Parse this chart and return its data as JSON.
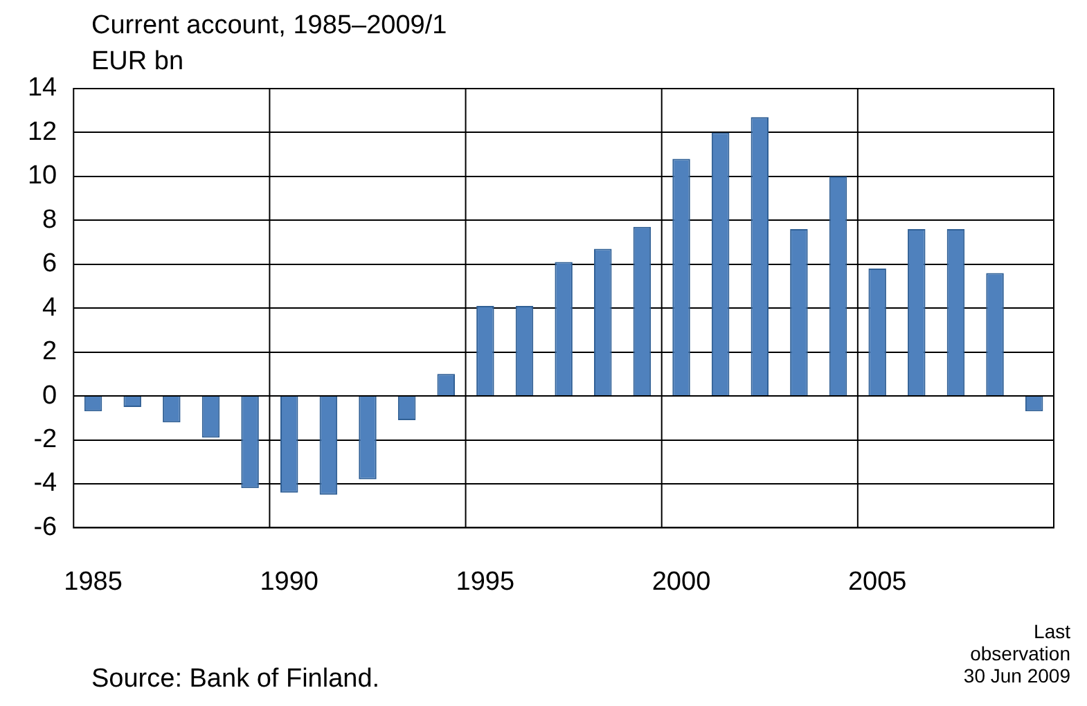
{
  "chart_data": {
    "type": "bar",
    "title": "Current account, 1985–2009/1",
    "ylabel": "EUR bn",
    "categories": [
      "1985",
      null,
      null,
      null,
      null,
      "1990",
      null,
      null,
      null,
      null,
      "1995",
      null,
      null,
      null,
      null,
      "2000",
      null,
      null,
      null,
      null,
      "2005",
      null,
      null,
      null,
      null
    ],
    "values": [
      -0.7,
      -0.5,
      -1.2,
      -1.9,
      -4.2,
      -4.4,
      -4.5,
      -3.8,
      -1.1,
      1.0,
      4.1,
      4.1,
      6.1,
      6.7,
      7.7,
      10.8,
      12.0,
      12.7,
      7.6,
      10.0,
      5.8,
      7.6,
      7.6,
      5.6,
      -0.7
    ],
    "color": "#4f81bd",
    "ylim": [
      -6,
      14
    ],
    "yticks": [
      -6,
      -4,
      -2,
      0,
      2,
      4,
      6,
      8,
      10,
      12,
      14
    ],
    "grid": true,
    "legend": false,
    "annotations": [
      "Source: Bank of Finland.",
      "Last observation 30 Jun 2009"
    ]
  }
}
